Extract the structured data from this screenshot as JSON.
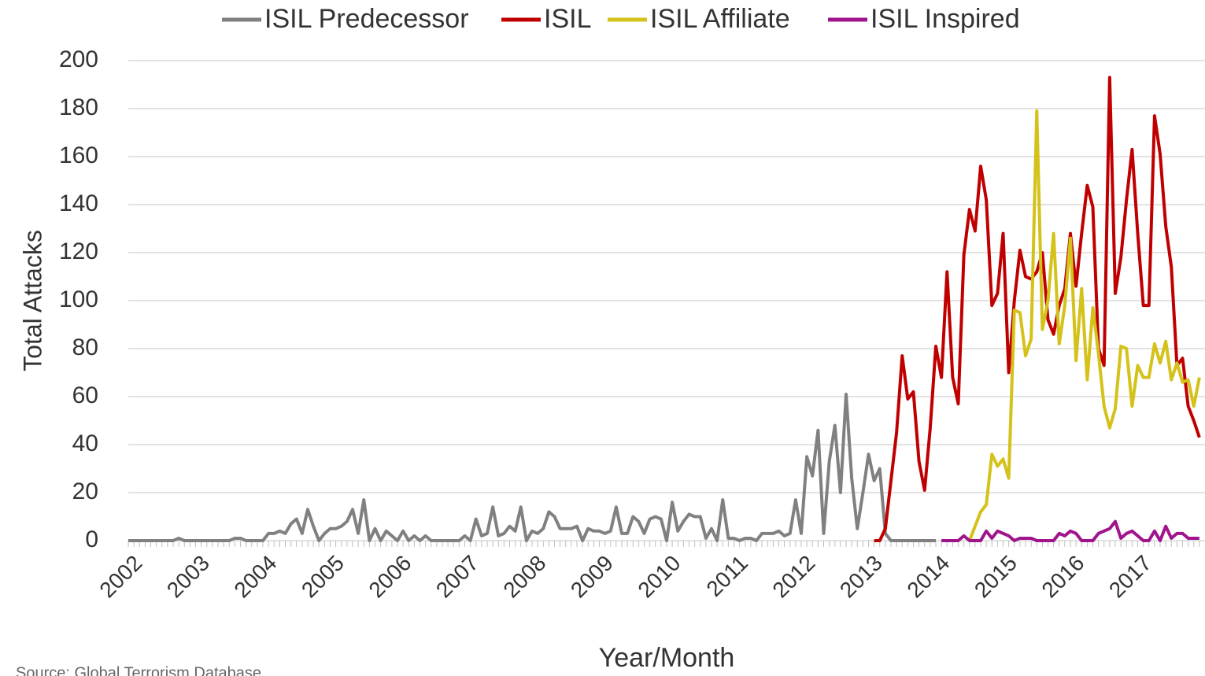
{
  "chart_data": {
    "type": "line",
    "x_label": "Year/Month",
    "y_label": "Total Attacks",
    "source": "Source: Global Terrorism Database",
    "ylim": [
      0,
      200
    ],
    "yticks": [
      0,
      20,
      40,
      60,
      80,
      100,
      120,
      140,
      160,
      180,
      200
    ],
    "grid": true,
    "legend": "top",
    "categories": [
      "2002",
      null,
      null,
      null,
      null,
      null,
      null,
      null,
      null,
      null,
      null,
      null,
      "2003",
      null,
      null,
      null,
      null,
      null,
      null,
      null,
      null,
      null,
      null,
      null,
      "2004",
      null,
      null,
      null,
      null,
      null,
      null,
      null,
      null,
      null,
      null,
      null,
      "2005",
      null,
      null,
      null,
      null,
      null,
      null,
      null,
      null,
      null,
      null,
      null,
      "2006",
      null,
      null,
      null,
      null,
      null,
      null,
      null,
      null,
      null,
      null,
      null,
      "2007",
      null,
      null,
      null,
      null,
      null,
      null,
      null,
      null,
      null,
      null,
      null,
      "2008",
      null,
      null,
      null,
      null,
      null,
      null,
      null,
      null,
      null,
      null,
      null,
      "2009",
      null,
      null,
      null,
      null,
      null,
      null,
      null,
      null,
      null,
      null,
      null,
      "2010",
      null,
      null,
      null,
      null,
      null,
      null,
      null,
      null,
      null,
      null,
      null,
      "2011",
      null,
      null,
      null,
      null,
      null,
      null,
      null,
      null,
      null,
      null,
      null,
      "2012",
      null,
      null,
      null,
      null,
      null,
      null,
      null,
      null,
      null,
      null,
      null,
      "2013",
      null,
      null,
      null,
      null,
      null,
      null,
      null,
      null,
      null,
      null,
      null,
      "2014",
      null,
      null,
      null,
      null,
      null,
      null,
      null,
      null,
      null,
      null,
      null,
      "2015",
      null,
      null,
      null,
      null,
      null,
      null,
      null,
      null,
      null,
      null,
      null,
      "2016",
      null,
      null,
      null,
      null,
      null,
      null,
      null,
      null,
      null,
      null,
      null,
      "2017",
      null,
      null,
      null,
      null,
      null,
      null,
      null,
      null,
      null,
      null,
      null
    ],
    "series": [
      {
        "name": "ISIL Predecessor",
        "color": "#808080",
        "values": [
          0,
          0,
          0,
          0,
          0,
          0,
          0,
          0,
          0,
          1,
          0,
          0,
          0,
          0,
          0,
          0,
          0,
          0,
          0,
          1,
          1,
          0,
          0,
          0,
          0,
          3,
          3,
          4,
          3,
          7,
          9,
          3,
          13,
          6,
          0,
          3,
          5,
          5,
          6,
          8,
          13,
          3,
          17,
          0,
          5,
          0,
          4,
          2,
          0,
          4,
          0,
          2,
          0,
          2,
          0,
          0,
          0,
          0,
          0,
          0,
          2,
          0,
          9,
          2,
          3,
          14,
          2,
          3,
          6,
          4,
          14,
          0,
          4,
          3,
          5,
          12,
          10,
          5,
          5,
          5,
          6,
          0,
          5,
          4,
          4,
          3,
          4,
          14,
          3,
          3,
          10,
          8,
          3,
          9,
          10,
          9,
          0,
          16,
          4,
          8,
          11,
          10,
          10,
          1,
          5,
          0,
          17,
          1,
          1,
          0,
          1,
          1,
          0,
          3,
          3,
          3,
          4,
          2,
          3,
          17,
          3,
          35,
          27,
          46,
          3,
          33,
          48,
          20,
          61,
          26,
          5,
          20,
          36,
          25,
          30,
          3,
          0,
          0,
          0,
          0,
          0,
          0,
          0,
          0,
          0,
          null,
          null,
          null,
          null,
          null,
          null,
          null,
          null,
          null,
          null,
          null,
          null,
          null,
          null,
          null,
          null,
          null,
          null,
          null,
          null,
          null,
          null,
          null,
          null,
          null,
          null,
          null,
          null,
          null,
          null,
          null,
          null,
          null,
          null,
          null,
          null,
          null,
          null,
          null,
          null,
          null,
          null,
          null,
          null,
          null,
          null,
          null
        ]
      },
      {
        "name": "ISIL",
        "color": "#c00000",
        "values": [
          null,
          null,
          null,
          null,
          null,
          null,
          null,
          null,
          null,
          null,
          null,
          null,
          null,
          null,
          null,
          null,
          null,
          null,
          null,
          null,
          null,
          null,
          null,
          null,
          null,
          null,
          null,
          null,
          null,
          null,
          null,
          null,
          null,
          null,
          null,
          null,
          null,
          null,
          null,
          null,
          null,
          null,
          null,
          null,
          null,
          null,
          null,
          null,
          null,
          null,
          null,
          null,
          null,
          null,
          null,
          null,
          null,
          null,
          null,
          null,
          null,
          null,
          null,
          null,
          null,
          null,
          null,
          null,
          null,
          null,
          null,
          null,
          null,
          null,
          null,
          null,
          null,
          null,
          null,
          null,
          null,
          null,
          null,
          null,
          null,
          null,
          null,
          null,
          null,
          null,
          null,
          null,
          null,
          null,
          null,
          null,
          null,
          null,
          null,
          null,
          null,
          null,
          null,
          null,
          null,
          null,
          null,
          null,
          null,
          null,
          null,
          null,
          null,
          null,
          null,
          null,
          null,
          null,
          null,
          null,
          null,
          null,
          null,
          null,
          null,
          null,
          null,
          null,
          null,
          null,
          null,
          null,
          null,
          0,
          0,
          5,
          25,
          45,
          77,
          59,
          62,
          33,
          21,
          47,
          81,
          68,
          112,
          68,
          57,
          119,
          138,
          129,
          156,
          142,
          98,
          103,
          128,
          70,
          100,
          121,
          110,
          109,
          112,
          120,
          92,
          86,
          98,
          105,
          128,
          106,
          128,
          148,
          139,
          80,
          73,
          193,
          103,
          118,
          142,
          163,
          128,
          98,
          98,
          177,
          161,
          131,
          114,
          73,
          76,
          56,
          50,
          43
        ]
      },
      {
        "name": "ISIL Affiliate",
        "color": "#d4c21a",
        "values": [
          null,
          null,
          null,
          null,
          null,
          null,
          null,
          null,
          null,
          null,
          null,
          null,
          null,
          null,
          null,
          null,
          null,
          null,
          null,
          null,
          null,
          null,
          null,
          null,
          null,
          null,
          null,
          null,
          null,
          null,
          null,
          null,
          null,
          null,
          null,
          null,
          null,
          null,
          null,
          null,
          null,
          null,
          null,
          null,
          null,
          null,
          null,
          null,
          null,
          null,
          null,
          null,
          null,
          null,
          null,
          null,
          null,
          null,
          null,
          null,
          null,
          null,
          null,
          null,
          null,
          null,
          null,
          null,
          null,
          null,
          null,
          null,
          null,
          null,
          null,
          null,
          null,
          null,
          null,
          null,
          null,
          null,
          null,
          null,
          null,
          null,
          null,
          null,
          null,
          null,
          null,
          null,
          null,
          null,
          null,
          null,
          null,
          null,
          null,
          null,
          null,
          null,
          null,
          null,
          null,
          null,
          null,
          null,
          null,
          null,
          null,
          null,
          null,
          null,
          null,
          null,
          null,
          null,
          null,
          null,
          null,
          null,
          null,
          null,
          null,
          null,
          null,
          null,
          null,
          null,
          null,
          null,
          null,
          null,
          null,
          null,
          null,
          null,
          null,
          null,
          null,
          null,
          null,
          null,
          null,
          null,
          null,
          null,
          null,
          null,
          0,
          6,
          12,
          15,
          36,
          31,
          34,
          26,
          96,
          95,
          77,
          84,
          179,
          88,
          100,
          128,
          82,
          98,
          126,
          75,
          105,
          67,
          97,
          78,
          56,
          47,
          55,
          81,
          80,
          56,
          73,
          68,
          68,
          82,
          74,
          83,
          67,
          74,
          66,
          67,
          56,
          68
        ]
      },
      {
        "name": "ISIL Inspired",
        "color": "#a0148c",
        "values": [
          null,
          null,
          null,
          null,
          null,
          null,
          null,
          null,
          null,
          null,
          null,
          null,
          null,
          null,
          null,
          null,
          null,
          null,
          null,
          null,
          null,
          null,
          null,
          null,
          null,
          null,
          null,
          null,
          null,
          null,
          null,
          null,
          null,
          null,
          null,
          null,
          null,
          null,
          null,
          null,
          null,
          null,
          null,
          null,
          null,
          null,
          null,
          null,
          null,
          null,
          null,
          null,
          null,
          null,
          null,
          null,
          null,
          null,
          null,
          null,
          null,
          null,
          null,
          null,
          null,
          null,
          null,
          null,
          null,
          null,
          null,
          null,
          null,
          null,
          null,
          null,
          null,
          null,
          null,
          null,
          null,
          null,
          null,
          null,
          null,
          null,
          null,
          null,
          null,
          null,
          null,
          null,
          null,
          null,
          null,
          null,
          null,
          null,
          null,
          null,
          null,
          null,
          null,
          null,
          null,
          null,
          null,
          null,
          null,
          null,
          null,
          null,
          null,
          null,
          null,
          null,
          null,
          null,
          null,
          null,
          null,
          null,
          null,
          null,
          null,
          null,
          null,
          null,
          null,
          null,
          null,
          null,
          null,
          null,
          null,
          null,
          null,
          null,
          null,
          null,
          null,
          null,
          null,
          null,
          null,
          0,
          0,
          0,
          0,
          2,
          0,
          0,
          0,
          4,
          1,
          4,
          3,
          2,
          0,
          1,
          1,
          1,
          0,
          0,
          0,
          0,
          3,
          2,
          4,
          3,
          0,
          0,
          0,
          3,
          4,
          5,
          8,
          1,
          3,
          4,
          2,
          0,
          0,
          4,
          0,
          6,
          1,
          3,
          3,
          1,
          1,
          1
        ]
      }
    ]
  }
}
